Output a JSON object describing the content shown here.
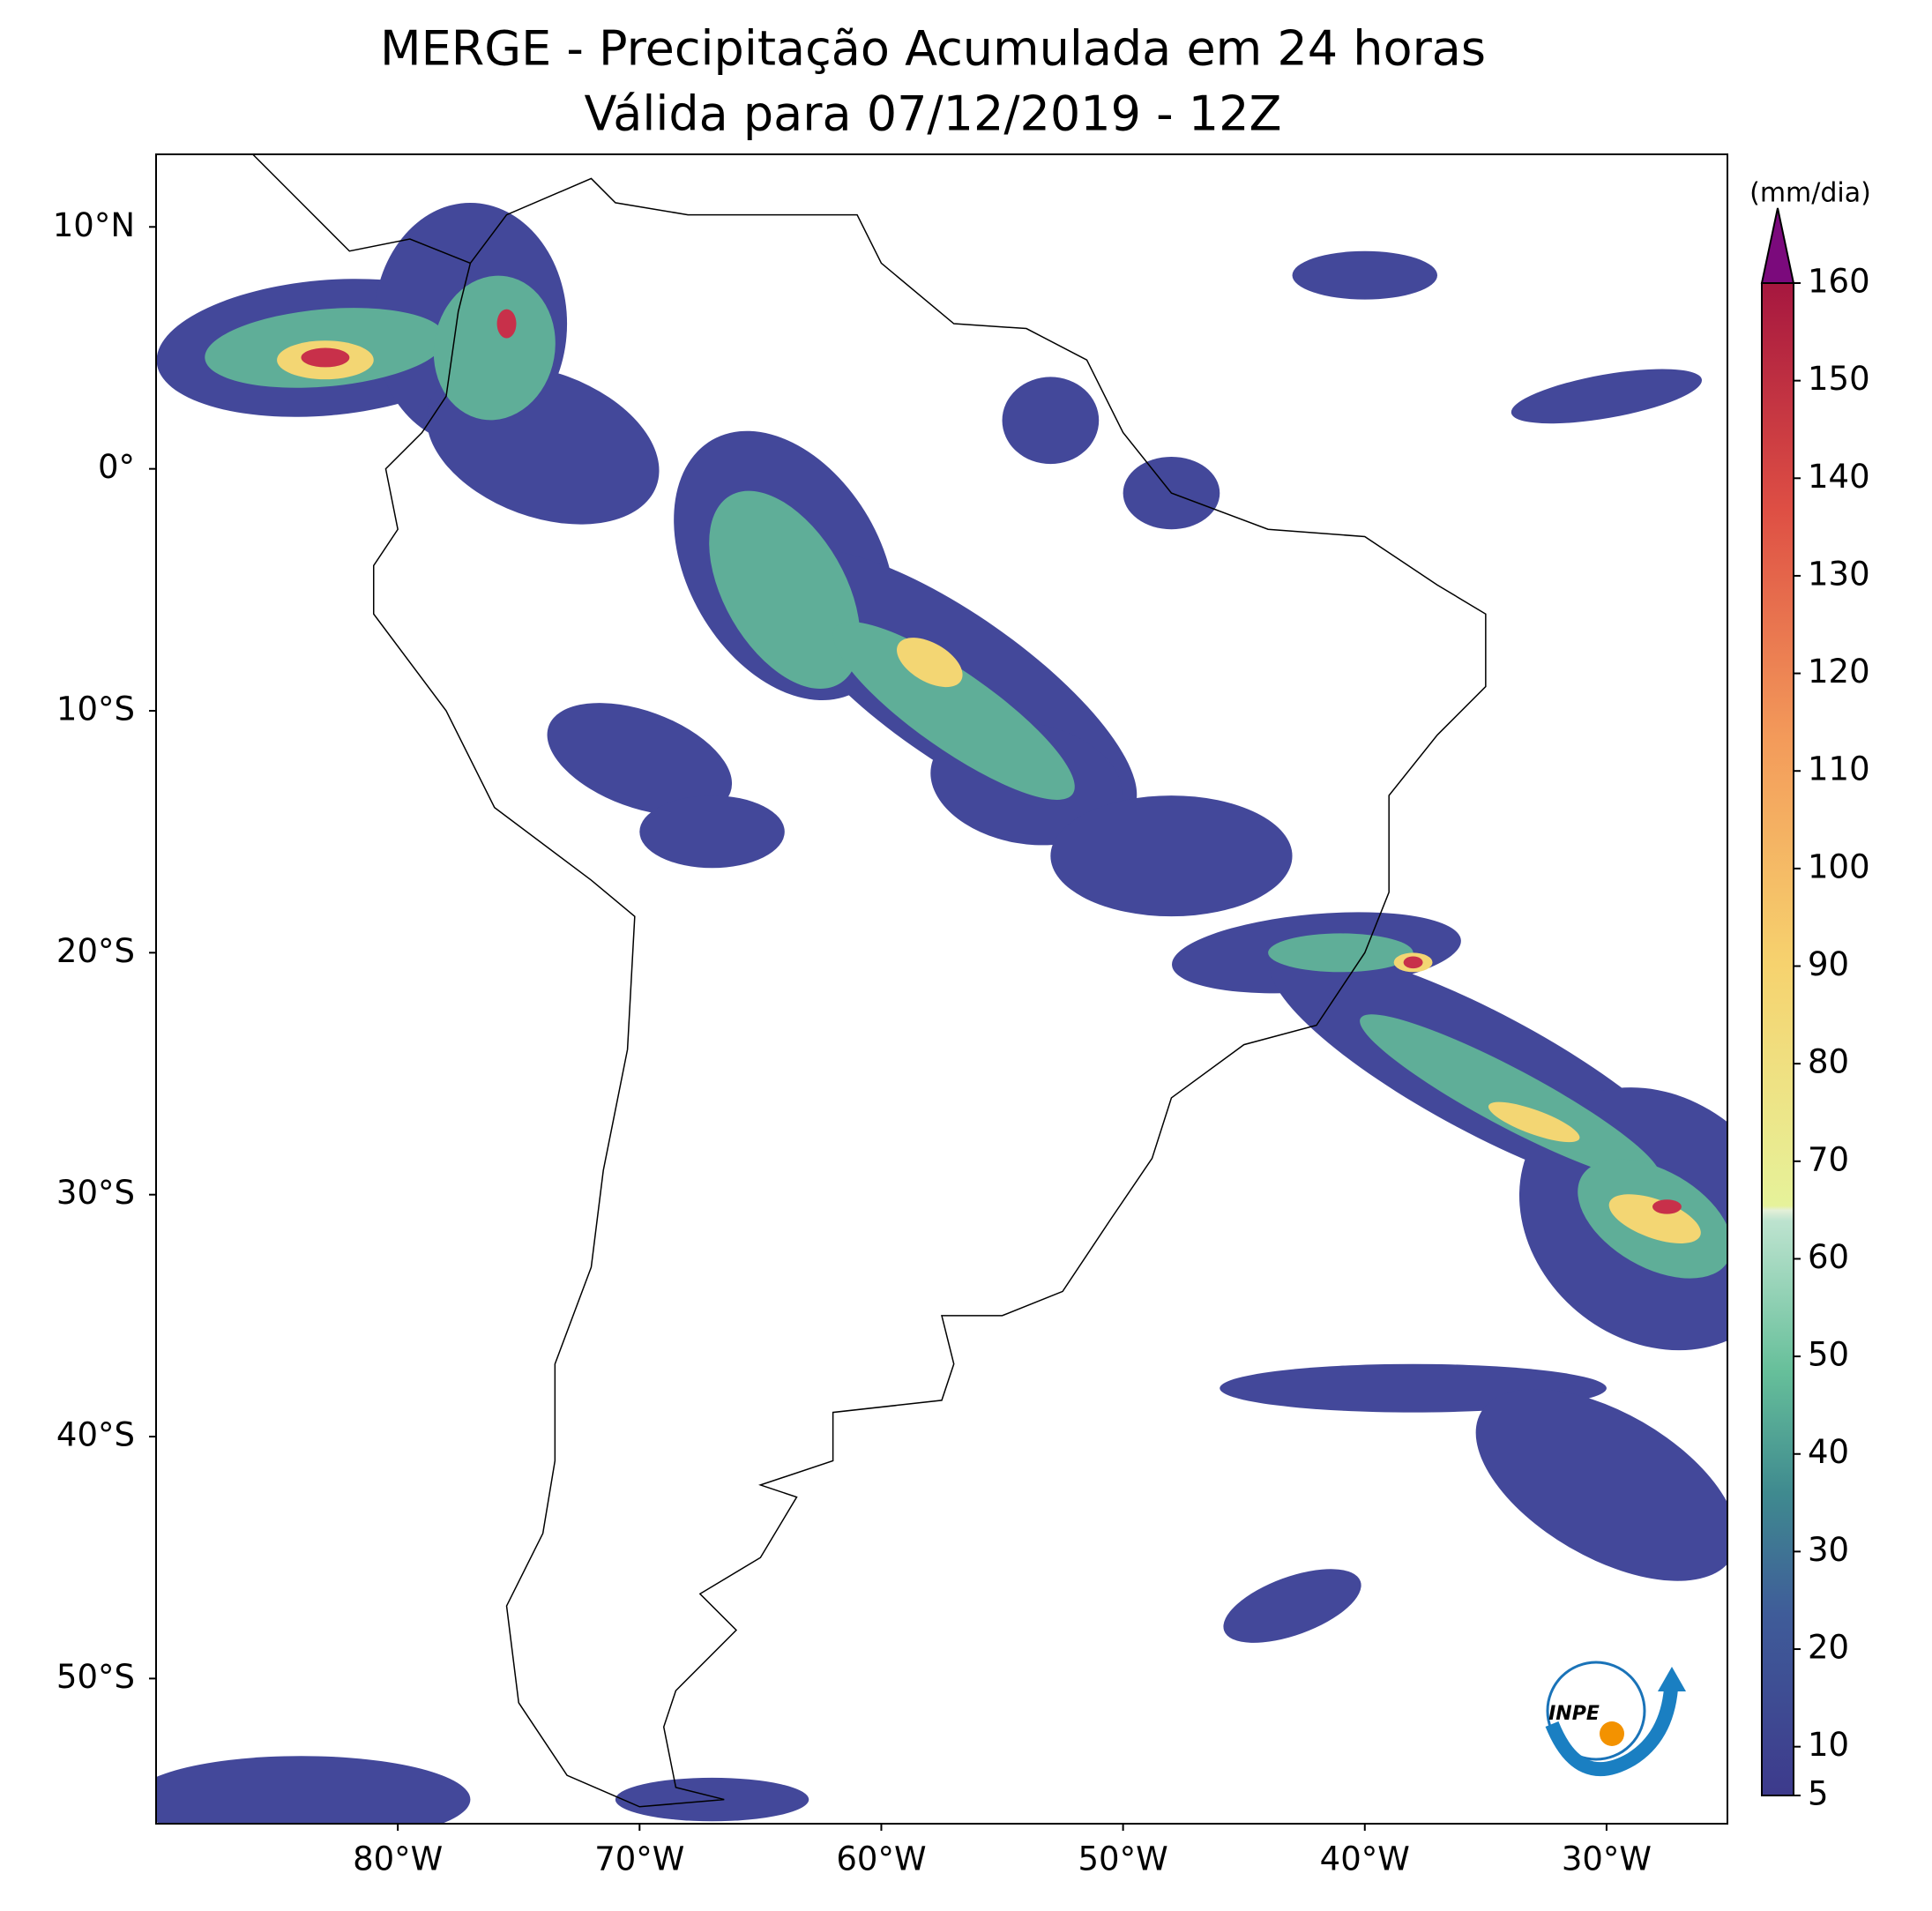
{
  "title": [
    "MERGE - Precipitação Acumulada em 24 horas",
    "Válida para 07/12/2019 - 12Z"
  ],
  "map": {
    "xlim": [
      -90,
      -25
    ],
    "ylim": [
      -56,
      13
    ],
    "xticks": [
      {
        "value": -80,
        "label": "80°W"
      },
      {
        "value": -70,
        "label": "70°W"
      },
      {
        "value": -60,
        "label": "60°W"
      },
      {
        "value": -50,
        "label": "50°W"
      },
      {
        "value": -40,
        "label": "40°W"
      },
      {
        "value": -30,
        "label": "30°W"
      }
    ],
    "yticks": [
      {
        "value": 10,
        "label": "10°N"
      },
      {
        "value": 0,
        "label": "0°"
      },
      {
        "value": -10,
        "label": "10°S"
      },
      {
        "value": -20,
        "label": "20°S"
      },
      {
        "value": -30,
        "label": "30°S"
      },
      {
        "value": -40,
        "label": "40°S"
      },
      {
        "value": -50,
        "label": "50°S"
      }
    ]
  },
  "colorbar": {
    "label": "(mm/dia)",
    "lim": [
      5,
      160
    ],
    "ticks": [
      5,
      10,
      20,
      30,
      40,
      50,
      60,
      70,
      80,
      90,
      100,
      110,
      120,
      130,
      140,
      150,
      160
    ]
  },
  "logo": {
    "text": "INPE"
  }
}
